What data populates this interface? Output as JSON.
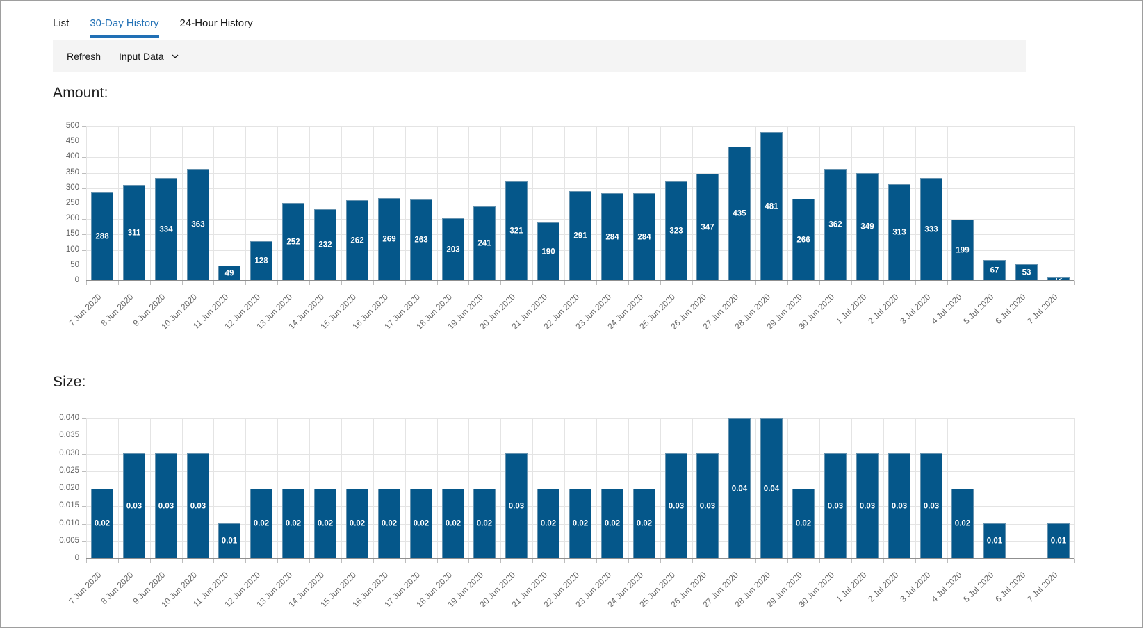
{
  "tabs": [
    {
      "label": "List",
      "active": false
    },
    {
      "label": "30-Day History",
      "active": true
    },
    {
      "label": "24-Hour History",
      "active": false
    }
  ],
  "toolbar": {
    "refresh_label": "Refresh",
    "input_data_label": "Input Data",
    "dropdown_icon": "chevron-down-icon"
  },
  "colors": {
    "bar": "#05578a",
    "active_tab": "#2170b5",
    "toolbar_bg": "#f4f4f4",
    "grid": "#e4e4e4",
    "axis_baseline": "#8f8f8f",
    "tick_text": "#636363",
    "bar_value_text": "#ffffff"
  },
  "chart_data": [
    {
      "type": "bar",
      "title": "Amount:",
      "xlabel": "",
      "ylabel": "",
      "grid": true,
      "legend": "none",
      "ylim": [
        0,
        500
      ],
      "yticks": [
        0,
        50,
        100,
        150,
        200,
        250,
        300,
        350,
        400,
        450,
        500
      ],
      "ytick_labels": [
        "0",
        "50",
        "100",
        "150",
        "200",
        "250",
        "300",
        "350",
        "400",
        "450",
        "500"
      ],
      "categories": [
        "7 Jun 2020",
        "8 Jun 2020",
        "9 Jun 2020",
        "10 Jun 2020",
        "11 Jun 2020",
        "12 Jun 2020",
        "13 Jun 2020",
        "14 Jun 2020",
        "15 Jun 2020",
        "16 Jun 2020",
        "17 Jun 2020",
        "18 Jun 2020",
        "19 Jun 2020",
        "20 Jun 2020",
        "21 Jun 2020",
        "22 Jun 2020",
        "23 Jun 2020",
        "24 Jun 2020",
        "25 Jun 2020",
        "26 Jun 2020",
        "27 Jun 2020",
        "28 Jun 2020",
        "29 Jun 2020",
        "30 Jun 2020",
        "1 Jul 2020",
        "2 Jul 2020",
        "3 Jul 2020",
        "4 Jul 2020",
        "5 Jul 2020",
        "6 Jul 2020",
        "7 Jul 2020"
      ],
      "values": [
        288,
        311,
        334,
        363,
        49,
        128,
        252,
        232,
        262,
        269,
        263,
        203,
        241,
        321,
        190,
        291,
        284,
        284,
        323,
        347,
        435,
        481,
        266,
        362,
        349,
        313,
        333,
        199,
        67,
        53,
        12
      ],
      "bar_labels": [
        "288",
        "311",
        "334",
        "363",
        "49",
        "128",
        "252",
        "232",
        "262",
        "269",
        "263",
        "203",
        "241",
        "321",
        "190",
        "291",
        "284",
        "284",
        "323",
        "347",
        "435",
        "481",
        "266",
        "362",
        "349",
        "313",
        "333",
        "199",
        "67",
        "53",
        "12"
      ]
    },
    {
      "type": "bar",
      "title": "Size:",
      "xlabel": "",
      "ylabel": "",
      "grid": true,
      "legend": "none",
      "ylim": [
        0,
        0.04
      ],
      "yticks": [
        0,
        0.005,
        0.01,
        0.015,
        0.02,
        0.025,
        0.03,
        0.035,
        0.04
      ],
      "ytick_labels": [
        "0",
        "0.005",
        "0.010",
        "0.015",
        "0.020",
        "0.025",
        "0.030",
        "0.035",
        "0.040"
      ],
      "categories": [
        "7 Jun 2020",
        "8 Jun 2020",
        "9 Jun 2020",
        "10 Jun 2020",
        "11 Jun 2020",
        "12 Jun 2020",
        "13 Jun 2020",
        "14 Jun 2020",
        "15 Jun 2020",
        "16 Jun 2020",
        "17 Jun 2020",
        "18 Jun 2020",
        "19 Jun 2020",
        "20 Jun 2020",
        "21 Jun 2020",
        "22 Jun 2020",
        "23 Jun 2020",
        "24 Jun 2020",
        "25 Jun 2020",
        "26 Jun 2020",
        "27 Jun 2020",
        "28 Jun 2020",
        "29 Jun 2020",
        "30 Jun 2020",
        "1 Jul 2020",
        "2 Jul 2020",
        "3 Jul 2020",
        "4 Jul 2020",
        "5 Jul 2020",
        "6 Jul 2020",
        "7 Jul 2020"
      ],
      "values": [
        0.02,
        0.03,
        0.03,
        0.03,
        0.01,
        0.02,
        0.02,
        0.02,
        0.02,
        0.02,
        0.02,
        0.02,
        0.02,
        0.03,
        0.02,
        0.02,
        0.02,
        0.02,
        0.03,
        0.03,
        0.04,
        0.04,
        0.02,
        0.03,
        0.03,
        0.03,
        0.03,
        0.02,
        0.01,
        null,
        0.01
      ],
      "bar_labels": [
        "0.02",
        "0.03",
        "0.03",
        "0.03",
        "0.01",
        "0.02",
        "0.02",
        "0.02",
        "0.02",
        "0.02",
        "0.02",
        "0.02",
        "0.02",
        "0.03",
        "0.02",
        "0.02",
        "0.02",
        "0.02",
        "0.03",
        "0.03",
        "0.04",
        "0.04",
        "0.02",
        "0.03",
        "0.03",
        "0.03",
        "0.03",
        "0.02",
        "0.01",
        "",
        "0.01"
      ]
    }
  ]
}
